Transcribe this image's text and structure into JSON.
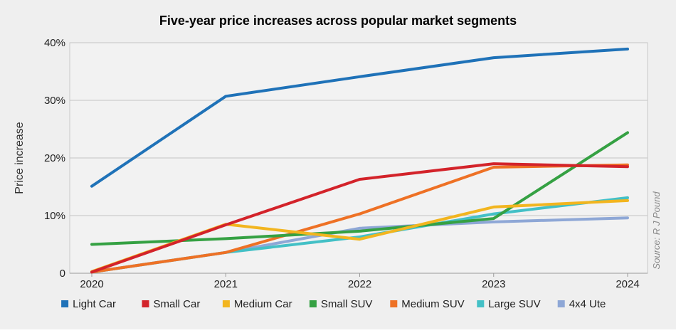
{
  "chart_data": {
    "type": "line",
    "title": "Five-year price increases across popular market segments",
    "xlabel": "",
    "ylabel": "Price increase",
    "source": "Source: R J Pound",
    "x": [
      "2020",
      "2021",
      "2022",
      "2023",
      "2024"
    ],
    "y_ticks": [
      "0",
      "10%",
      "20%",
      "30%",
      "40%"
    ],
    "ylim": [
      0,
      40
    ],
    "grid": "horizontal",
    "legend_position": "bottom",
    "series": [
      {
        "name": "Light Car",
        "color": "#1f72b8",
        "values": [
          15.1,
          30.7,
          34.1,
          37.4,
          38.9
        ]
      },
      {
        "name": "Small Car",
        "color": "#d3232a",
        "values": [
          0.2,
          8.4,
          16.3,
          19.0,
          18.5
        ]
      },
      {
        "name": "Medium Car",
        "color": "#f2b51f",
        "values": [
          0.3,
          8.5,
          5.9,
          11.5,
          12.6
        ]
      },
      {
        "name": "Small SUV",
        "color": "#35a143",
        "values": [
          5.0,
          6.0,
          7.3,
          9.5,
          24.4
        ]
      },
      {
        "name": "Medium SUV",
        "color": "#ee7125",
        "values": [
          0.2,
          3.6,
          10.3,
          18.4,
          18.8
        ]
      },
      {
        "name": "Large SUV",
        "color": "#43c0c6",
        "values": [
          0.2,
          3.6,
          6.3,
          10.3,
          13.1
        ]
      },
      {
        "name": "4x4 Ute",
        "color": "#8ea7d6",
        "values": [
          0.2,
          3.6,
          7.8,
          8.9,
          9.6
        ]
      }
    ]
  }
}
